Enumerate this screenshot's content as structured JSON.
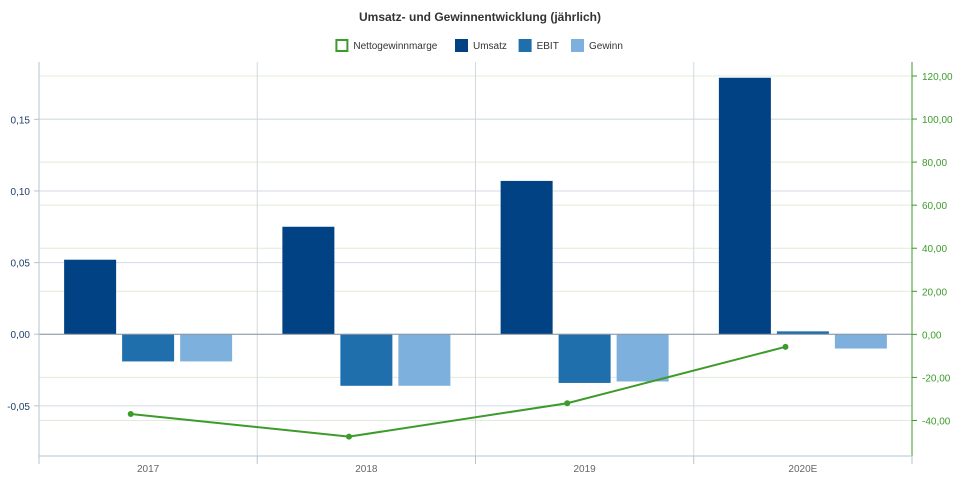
{
  "chart_data": {
    "type": "bar",
    "title": "Umsatz- und Gewinnentwicklung (jährlich)",
    "categories": [
      "2017",
      "2018",
      "2019",
      "2020E"
    ],
    "legend_position": "top-center",
    "grid": true,
    "y_left": {
      "ylim": [
        -0.085,
        0.19
      ],
      "ticks": [
        -0.05,
        0.0,
        0.05,
        0.1,
        0.15
      ],
      "tick_labels": [
        "-0,05",
        "0,00",
        "0,05",
        "0,10",
        "0,15"
      ]
    },
    "y_right": {
      "ylim": [
        -56.5,
        126.5
      ],
      "ticks": [
        -40,
        -20,
        0,
        20,
        40,
        60,
        80,
        100,
        120
      ],
      "tick_labels": [
        "-40,00",
        "-20,00",
        "0,00",
        "20,00",
        "40,00",
        "60,00",
        "80,00",
        "100,00",
        "120,00"
      ]
    },
    "series": [
      {
        "name": "Nettogewinnmarge",
        "kind": "line",
        "axis": "right",
        "color": "#3c9b2a",
        "values": [
          -37.0,
          -47.5,
          -32.0,
          -5.8
        ]
      },
      {
        "name": "Umsatz",
        "kind": "bar",
        "axis": "left",
        "color": "#004283",
        "values": [
          0.052,
          0.075,
          0.107,
          0.179
        ]
      },
      {
        "name": "EBIT",
        "kind": "bar",
        "axis": "left",
        "color": "#1f6fad",
        "values": [
          -0.019,
          -0.036,
          -0.034,
          0.002
        ]
      },
      {
        "name": "Gewinn",
        "kind": "bar",
        "axis": "left",
        "color": "#7db0dc",
        "values": [
          -0.019,
          -0.036,
          -0.033,
          -0.01
        ]
      }
    ]
  }
}
